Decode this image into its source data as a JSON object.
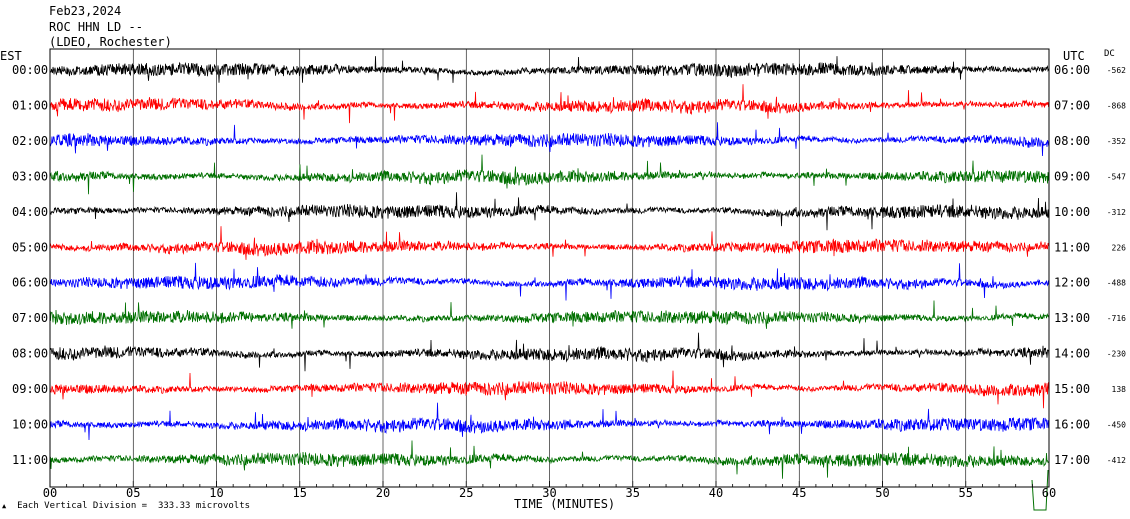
{
  "header": {
    "date": "Feb23,2024",
    "station": "ROC HHN LD --",
    "network": "(LDEO, Rochester)"
  },
  "tz_left": "EST",
  "tz_right": "UTC",
  "dc_label": "DC",
  "footer_icon": "small-logo-icon",
  "footer": "Each Vertical Division =  333.33 microvolts",
  "chart_data": {
    "type": "line",
    "title": "",
    "xlabel": "TIME (MINUTES)",
    "ylabel": "",
    "xlim": [
      0,
      60
    ],
    "x_ticks": [
      "00",
      "05",
      "10",
      "15",
      "20",
      "25",
      "30",
      "35",
      "40",
      "45",
      "50",
      "55",
      "60"
    ],
    "grid": true,
    "trace_colors": [
      "#000000",
      "#ff0000",
      "#0000ff",
      "#007000"
    ],
    "rows": [
      {
        "est": "00:00",
        "utc": "06:00",
        "dc": "-562"
      },
      {
        "est": "01:00",
        "utc": "07:00",
        "dc": "-868"
      },
      {
        "est": "02:00",
        "utc": "08:00",
        "dc": "-352"
      },
      {
        "est": "03:00",
        "utc": "09:00",
        "dc": "-547"
      },
      {
        "est": "04:00",
        "utc": "10:00",
        "dc": "-312"
      },
      {
        "est": "05:00",
        "utc": "11:00",
        "dc": "226"
      },
      {
        "est": "06:00",
        "utc": "12:00",
        "dc": "-488"
      },
      {
        "est": "07:00",
        "utc": "13:00",
        "dc": "-716"
      },
      {
        "est": "08:00",
        "utc": "14:00",
        "dc": "-230"
      },
      {
        "est": "09:00",
        "utc": "15:00",
        "dc": "138"
      },
      {
        "est": "10:00",
        "utc": "16:00",
        "dc": "-450"
      },
      {
        "est": "11:00",
        "utc": "17:00",
        "dc": "-412"
      }
    ]
  }
}
